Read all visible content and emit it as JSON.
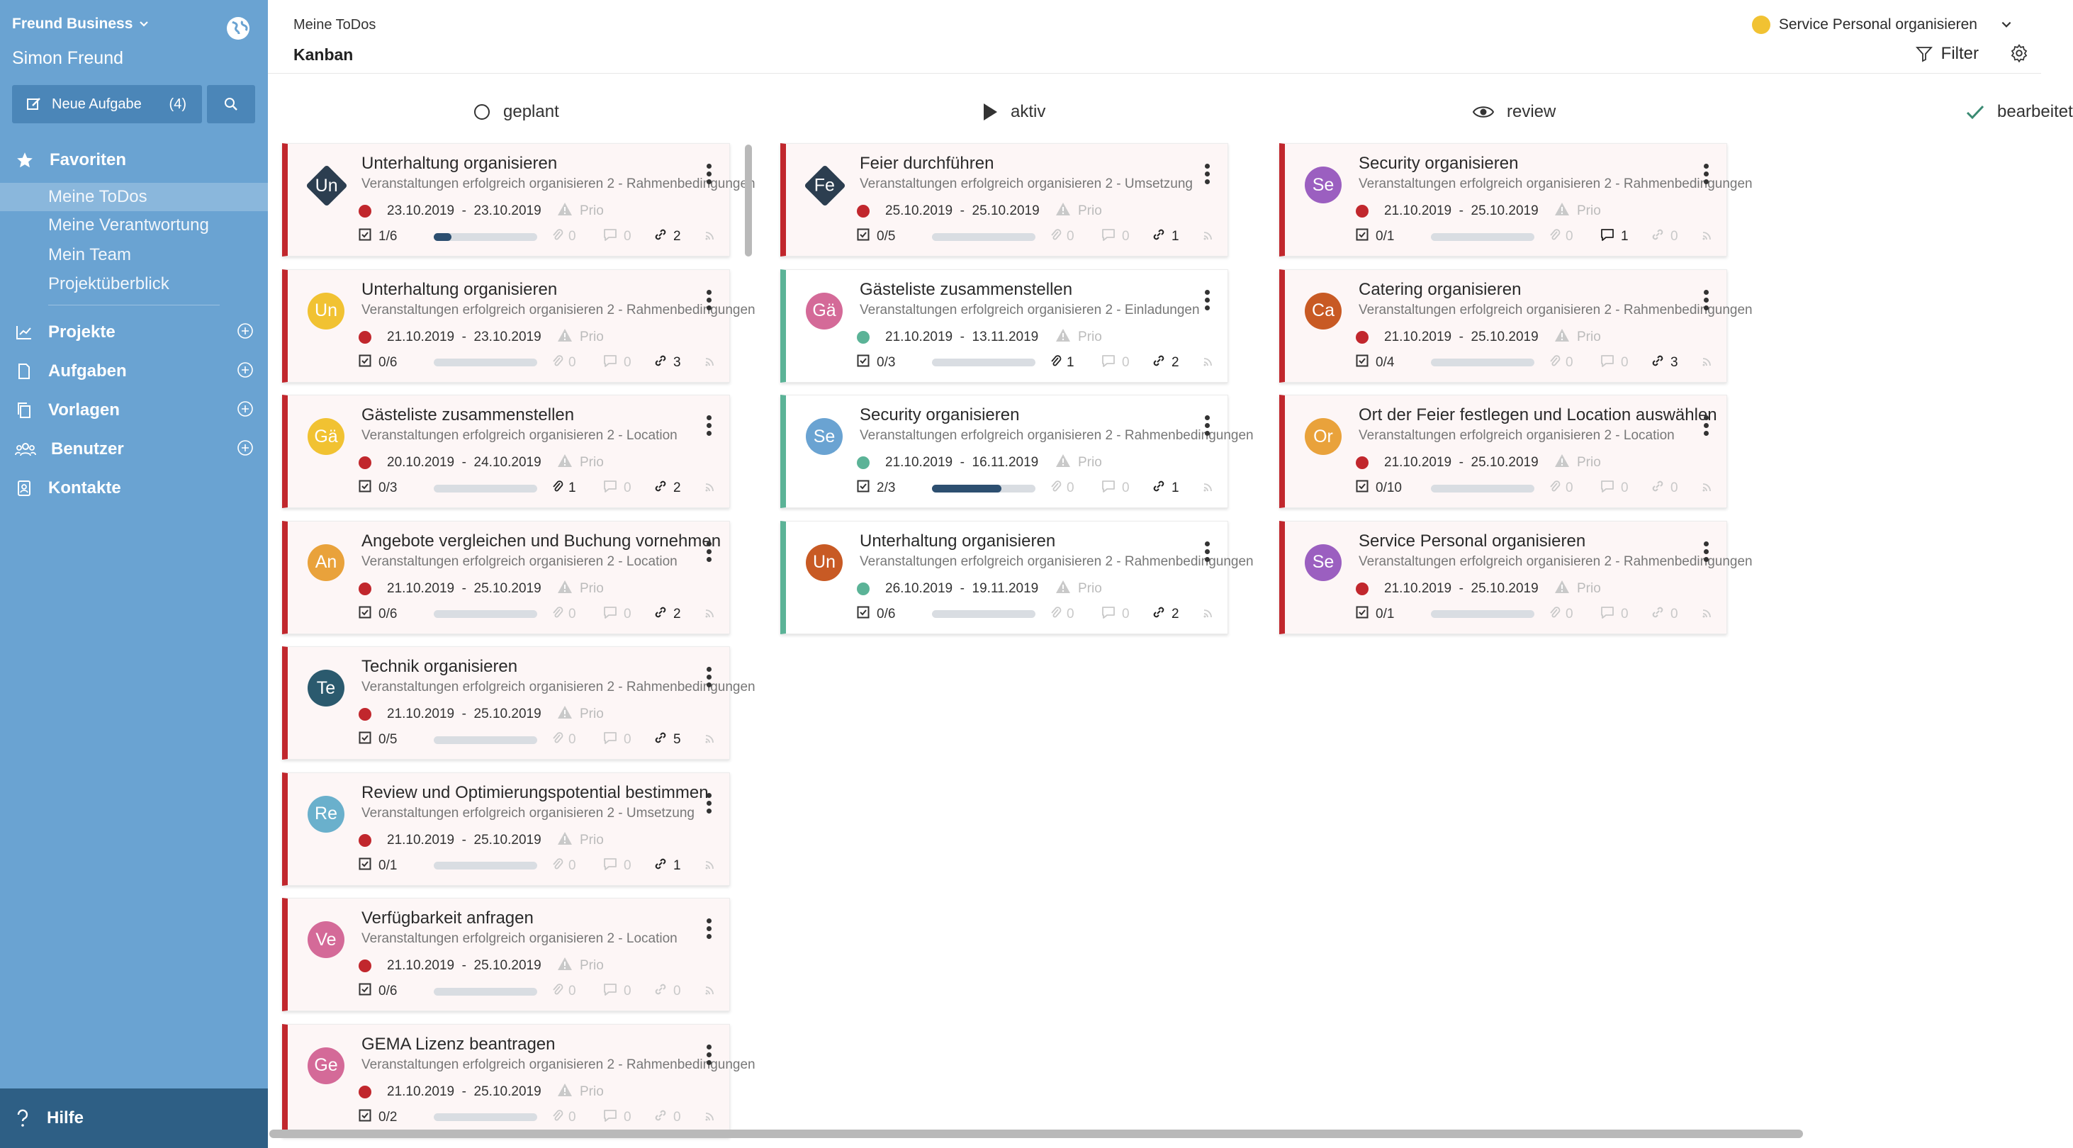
{
  "sidebar": {
    "workspace": "Freund Business",
    "user": "Simon Freund",
    "new_task_label": "Neue Aufgabe",
    "new_task_count": "(4)",
    "favorites_label": "Favoriten",
    "favorites": [
      "Meine ToDos",
      "Meine Verantwortung",
      "Mein Team",
      "Projektüberblick"
    ],
    "sections": [
      "Projekte",
      "Aufgaben",
      "Vorlagen",
      "Benutzer",
      "Kontakte"
    ],
    "help_label": "Hilfe"
  },
  "header": {
    "breadcrumb": "Meine ToDos",
    "title": "Kanban",
    "project": "Service Personal organisieren",
    "filter_label": "Filter"
  },
  "columns": [
    {
      "label": "geplant",
      "cards": [
        {
          "initials": "Un",
          "avatar_color": "#2c3e50",
          "shape": "diamond",
          "title": "Unterhaltung organisieren",
          "subtitle": "Veranstaltungen erfolgreich organisieren 2 - Rahmenbedingungen",
          "status_color": "#c1272d",
          "date_start": "23.10.2019",
          "date_end": "23.10.2019",
          "prio": "Prio",
          "checklist": "1/6",
          "progress": 0.17,
          "attachments": "0",
          "comments": "0",
          "links": "2",
          "comments_on": false,
          "links_on": true
        },
        {
          "initials": "Un",
          "avatar_color": "#f1c232",
          "shape": "circle",
          "title": "Unterhaltung organisieren",
          "subtitle": "Veranstaltungen erfolgreich organisieren 2 - Rahmenbedingungen",
          "status_color": "#c1272d",
          "date_start": "21.10.2019",
          "date_end": "23.10.2019",
          "prio": "Prio",
          "checklist": "0/6",
          "progress": 0,
          "attachments": "0",
          "comments": "0",
          "links": "3",
          "comments_on": false,
          "links_on": true
        },
        {
          "initials": "Gä",
          "avatar_color": "#f1c232",
          "shape": "circle",
          "title": "Gästeliste zusammenstellen",
          "subtitle": "Veranstaltungen erfolgreich organisieren 2 - Location",
          "status_color": "#c1272d",
          "date_start": "20.10.2019",
          "date_end": "24.10.2019",
          "prio": "Prio",
          "checklist": "0/3",
          "progress": 0,
          "attachments": "1",
          "comments": "0",
          "links": "2",
          "attachments_on": true,
          "comments_on": false,
          "links_on": true
        },
        {
          "initials": "An",
          "avatar_color": "#e9a23b",
          "shape": "circle",
          "title": "Angebote vergleichen und Buchung vornehmen",
          "subtitle": "Veranstaltungen erfolgreich organisieren 2 - Location",
          "status_color": "#c1272d",
          "date_start": "21.10.2019",
          "date_end": "25.10.2019",
          "prio": "Prio",
          "checklist": "0/6",
          "progress": 0,
          "attachments": "0",
          "comments": "0",
          "links": "2",
          "comments_on": false,
          "links_on": true
        },
        {
          "initials": "Te",
          "avatar_color": "#2b5a6e",
          "shape": "circle",
          "title": "Technik organisieren",
          "subtitle": "Veranstaltungen erfolgreich organisieren 2 - Rahmenbedingungen",
          "status_color": "#c1272d",
          "date_start": "21.10.2019",
          "date_end": "25.10.2019",
          "prio": "Prio",
          "checklist": "0/5",
          "progress": 0,
          "attachments": "0",
          "comments": "0",
          "links": "5",
          "comments_on": false,
          "links_on": true
        },
        {
          "initials": "Re",
          "avatar_color": "#6ab0cc",
          "shape": "circle",
          "title": "Review und Optimierungspotential bestimmen",
          "subtitle": "Veranstaltungen erfolgreich organisieren 2 - Umsetzung",
          "status_color": "#c1272d",
          "date_start": "21.10.2019",
          "date_end": "25.10.2019",
          "prio": "Prio",
          "checklist": "0/1",
          "progress": 0,
          "attachments": "0",
          "comments": "0",
          "links": "1",
          "comments_on": false,
          "links_on": true
        },
        {
          "initials": "Ve",
          "avatar_color": "#d46a98",
          "shape": "circle",
          "title": "Verfügbarkeit anfragen",
          "subtitle": "Veranstaltungen erfolgreich organisieren 2 - Location",
          "status_color": "#c1272d",
          "date_start": "21.10.2019",
          "date_end": "25.10.2019",
          "prio": "Prio",
          "checklist": "0/6",
          "progress": 0,
          "attachments": "0",
          "comments": "0",
          "links": "0",
          "comments_on": false,
          "links_on": false
        },
        {
          "initials": "Ge",
          "avatar_color": "#d46a98",
          "shape": "circle",
          "title": "GEMA Lizenz beantragen",
          "subtitle": "Veranstaltungen erfolgreich organisieren 2 - Rahmenbedingungen",
          "status_color": "#c1272d",
          "date_start": "21.10.2019",
          "date_end": "25.10.2019",
          "prio": "Prio",
          "checklist": "0/2",
          "progress": 0,
          "attachments": "0",
          "comments": "0",
          "links": "0",
          "comments_on": false,
          "links_on": false
        }
      ]
    },
    {
      "label": "aktiv",
      "cards": [
        {
          "initials": "Fe",
          "avatar_color": "#2c3e50",
          "shape": "diamond",
          "title": "Feier durchführen",
          "subtitle": "Veranstaltungen erfolgreich organisieren 2 - Umsetzung",
          "status_color": "#c1272d",
          "date_start": "25.10.2019",
          "date_end": "25.10.2019",
          "prio": "Prio",
          "checklist": "0/5",
          "progress": 0,
          "attachments": "0",
          "comments": "0",
          "links": "1",
          "comments_on": false,
          "links_on": true
        },
        {
          "initials": "Gä",
          "avatar_color": "#d46a98",
          "shape": "circle",
          "title": "Gästeliste zusammenstellen",
          "subtitle": "Veranstaltungen erfolgreich organisieren 2 - Einladungen",
          "status_color": "#5bb397",
          "date_start": "21.10.2019",
          "date_end": "13.11.2019",
          "prio": "Prio",
          "checklist": "0/3",
          "progress": 0,
          "attachments": "1",
          "comments": "0",
          "links": "2",
          "attachments_on": true,
          "comments_on": false,
          "links_on": true
        },
        {
          "initials": "Se",
          "avatar_color": "#6aa3d2",
          "shape": "circle",
          "title": "Security organisieren",
          "subtitle": "Veranstaltungen erfolgreich organisieren 2 - Rahmenbedingungen",
          "status_color": "#5bb397",
          "date_start": "21.10.2019",
          "date_end": "16.11.2019",
          "prio": "Prio",
          "checklist": "2/3",
          "progress": 0.67,
          "attachments": "0",
          "comments": "0",
          "links": "1",
          "comments_on": false,
          "links_on": true
        },
        {
          "initials": "Un",
          "avatar_color": "#c85a24",
          "shape": "circle",
          "title": "Unterhaltung organisieren",
          "subtitle": "Veranstaltungen erfolgreich organisieren 2 - Rahmenbedingungen",
          "status_color": "#5bb397",
          "date_start": "26.10.2019",
          "date_end": "19.11.2019",
          "prio": "Prio",
          "checklist": "0/6",
          "progress": 0,
          "attachments": "0",
          "comments": "0",
          "links": "2",
          "comments_on": false,
          "links_on": true
        }
      ]
    },
    {
      "label": "review",
      "cards": [
        {
          "initials": "Se",
          "avatar_color": "#9b5fc0",
          "shape": "circle",
          "title": "Security organisieren",
          "subtitle": "Veranstaltungen erfolgreich organisieren 2 - Rahmenbedingungen",
          "status_color": "#c1272d",
          "date_start": "21.10.2019",
          "date_end": "25.10.2019",
          "prio": "Prio",
          "checklist": "0/1",
          "progress": 0,
          "attachments": "0",
          "comments": "1",
          "links": "0",
          "comments_on": true,
          "links_on": false
        },
        {
          "initials": "Ca",
          "avatar_color": "#c85a24",
          "shape": "circle",
          "title": "Catering organisieren",
          "subtitle": "Veranstaltungen erfolgreich organisieren 2 - Rahmenbedingungen",
          "status_color": "#c1272d",
          "date_start": "21.10.2019",
          "date_end": "25.10.2019",
          "prio": "Prio",
          "checklist": "0/4",
          "progress": 0,
          "attachments": "0",
          "comments": "0",
          "links": "3",
          "comments_on": false,
          "links_on": true
        },
        {
          "initials": "Or",
          "avatar_color": "#e9a23b",
          "shape": "circle",
          "title": "Ort der Feier festlegen und Location auswählen",
          "subtitle": "Veranstaltungen erfolgreich organisieren 2 - Location",
          "status_color": "#c1272d",
          "date_start": "21.10.2019",
          "date_end": "25.10.2019",
          "prio": "Prio",
          "checklist": "0/10",
          "progress": 0,
          "attachments": "0",
          "comments": "0",
          "links": "0",
          "comments_on": false,
          "links_on": false
        },
        {
          "initials": "Se",
          "avatar_color": "#9b5fc0",
          "shape": "circle",
          "title": "Service Personal organisieren",
          "subtitle": "Veranstaltungen erfolgreich organisieren 2 - Rahmenbedingungen",
          "status_color": "#c1272d",
          "date_start": "21.10.2019",
          "date_end": "25.10.2019",
          "prio": "Prio",
          "checklist": "0/1",
          "progress": 0,
          "attachments": "0",
          "comments": "0",
          "links": "0",
          "comments_on": false,
          "links_on": false
        }
      ]
    },
    {
      "label": "bearbeitet",
      "cards": []
    }
  ],
  "colors": {
    "sidebar": "#6aa3d2",
    "status_red": "#c1272d",
    "status_green": "#5bb397",
    "help_bar": "#2e5f85"
  }
}
